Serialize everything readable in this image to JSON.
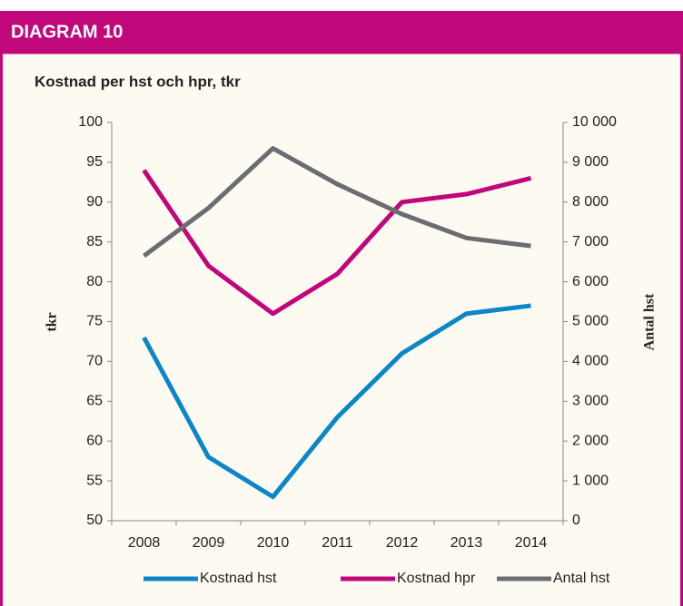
{
  "header": "DIAGRAM 10",
  "chart_data": {
    "type": "line",
    "title": "Kostnad per hst och hpr, tkr",
    "y_label": "tkr",
    "y2_label": "Antal hst",
    "categories": [
      "2008",
      "2009",
      "2010",
      "2011",
      "2012",
      "2013",
      "2014"
    ],
    "series": [
      {
        "name": "Kostnad hst",
        "color": "#0b87c9",
        "values": [
          73,
          58,
          53,
          63,
          71,
          76,
          77
        ]
      },
      {
        "name": "Kostnad hpr",
        "color": "#c2057b",
        "values": [
          94,
          82,
          76,
          81,
          90,
          91,
          93
        ]
      },
      {
        "name": "Antal hst",
        "color": "#6c6d70",
        "axis": "y2",
        "values": [
          6650,
          7850,
          9350,
          8450,
          7700,
          7100,
          6900
        ]
      }
    ],
    "ylim": [
      50,
      100
    ],
    "yticks": [
      50,
      55,
      60,
      65,
      70,
      75,
      80,
      85,
      90,
      95,
      100
    ],
    "y2lim": [
      0,
      10000
    ],
    "y2ticks": [
      0,
      {
        "value": 1000,
        "label": "1 000"
      },
      {
        "value": 2000,
        "label": "2 000"
      },
      {
        "value": 3000,
        "label": "3 000"
      },
      {
        "value": 4000,
        "label": "4 000"
      },
      {
        "value": 5000,
        "label": "5 000"
      },
      {
        "value": 6000,
        "label": "6 000"
      },
      {
        "value": 7000,
        "label": "7 000"
      },
      {
        "value": 8000,
        "label": "8 000"
      },
      {
        "value": 9000,
        "label": "9 000"
      },
      {
        "value": 10000,
        "label": "10 000"
      }
    ],
    "grid": false,
    "legend": "bottom"
  }
}
